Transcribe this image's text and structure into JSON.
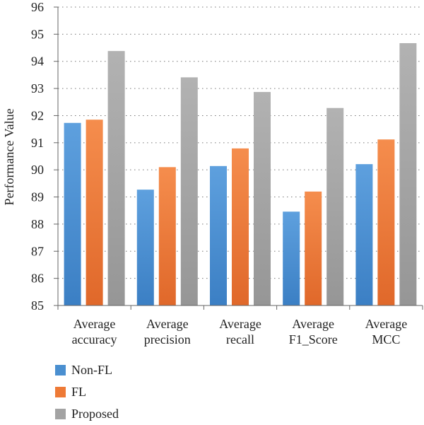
{
  "colors": {
    "non_fl": "#4a8fd0",
    "fl": "#ee7a36",
    "proposed": "#a3a3a3"
  },
  "chart_data": {
    "type": "bar",
    "title": "",
    "xlabel": "",
    "ylabel": "Performance Value",
    "ylim": [
      85,
      96
    ],
    "yticks": [
      85,
      86,
      87,
      88,
      89,
      90,
      91,
      92,
      93,
      94,
      95,
      96
    ],
    "grid": "dotted horizontal",
    "legend_position": "bottom-left",
    "categories": [
      [
        "Average",
        "accuracy"
      ],
      [
        "Average",
        "precision"
      ],
      [
        "Average",
        "recall"
      ],
      [
        "Average",
        "F1_Score"
      ],
      [
        "Average",
        "MCC"
      ]
    ],
    "series": [
      {
        "name": "Non-FL",
        "values": [
          91.73,
          89.27,
          90.14,
          88.46,
          90.21
        ]
      },
      {
        "name": "FL",
        "values": [
          91.85,
          90.1,
          90.79,
          89.2,
          91.12
        ]
      },
      {
        "name": "Proposed",
        "values": [
          94.38,
          93.41,
          92.87,
          92.28,
          94.67
        ]
      }
    ]
  }
}
